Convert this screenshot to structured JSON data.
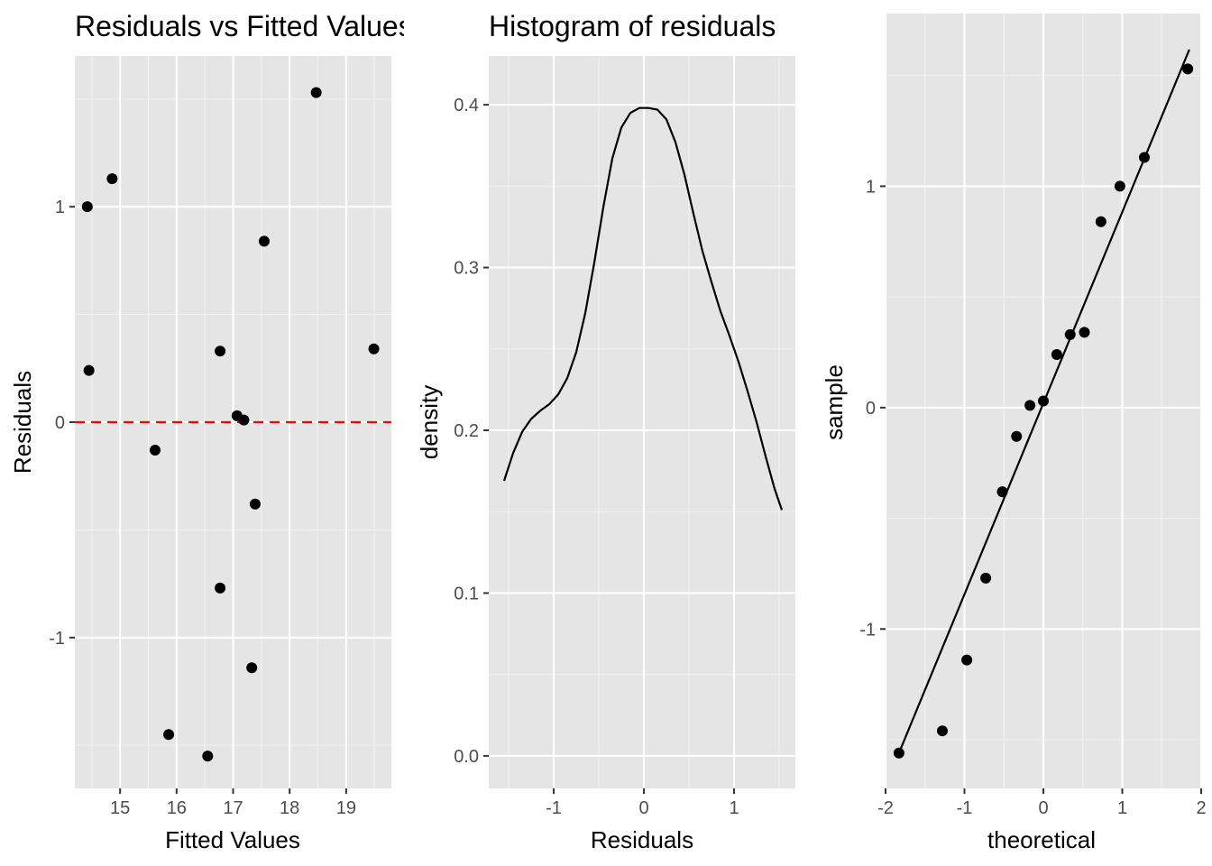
{
  "chart_data": [
    {
      "type": "scatter",
      "title": "Residuals vs Fitted Values",
      "xlabel": "Fitted Values",
      "ylabel": "Residuals",
      "xlim": [
        14.2,
        19.8
      ],
      "ylim": [
        -1.7,
        1.7
      ],
      "x_ticks": [
        15,
        16,
        17,
        18,
        19
      ],
      "y_ticks": [
        -1,
        0,
        1
      ],
      "grid": true,
      "reference_line": {
        "y": 0,
        "color": "#ff0000",
        "style": "dashed"
      },
      "points": [
        {
          "x": 14.42,
          "y": 1.0
        },
        {
          "x": 14.45,
          "y": 0.24
        },
        {
          "x": 14.86,
          "y": 1.13
        },
        {
          "x": 15.62,
          "y": -0.13
        },
        {
          "x": 15.86,
          "y": -1.45
        },
        {
          "x": 16.55,
          "y": -1.55
        },
        {
          "x": 16.77,
          "y": 0.33
        },
        {
          "x": 16.77,
          "y": -0.77
        },
        {
          "x": 17.07,
          "y": 0.03
        },
        {
          "x": 17.19,
          "y": 0.01
        },
        {
          "x": 17.33,
          "y": -1.14
        },
        {
          "x": 17.39,
          "y": -0.38
        },
        {
          "x": 17.55,
          "y": 0.84
        },
        {
          "x": 18.47,
          "y": 1.53
        },
        {
          "x": 19.49,
          "y": 0.34
        }
      ]
    },
    {
      "type": "line",
      "title": "Histogram of residuals",
      "xlabel": "Residuals",
      "ylabel": "density",
      "xlim": [
        -1.72,
        1.68
      ],
      "ylim": [
        -0.02,
        0.43
      ],
      "x_ticks": [
        -1,
        0,
        1
      ],
      "y_ticks": [
        0.0,
        0.1,
        0.2,
        0.3,
        0.4
      ],
      "y_tick_labels": [
        "0.0",
        "0.1",
        "0.2",
        "0.3",
        "0.4"
      ],
      "grid": true,
      "series": [
        {
          "x": [
            -1.55,
            -1.45,
            -1.35,
            -1.25,
            -1.15,
            -1.05,
            -0.95,
            -0.85,
            -0.75,
            -0.65,
            -0.55,
            -0.45,
            -0.35,
            -0.25,
            -0.15,
            -0.05,
            0.05,
            0.15,
            0.25,
            0.35,
            0.45,
            0.55,
            0.65,
            0.75,
            0.85,
            0.95,
            1.05,
            1.15,
            1.25,
            1.35,
            1.45,
            1.53
          ],
          "y": [
            0.169,
            0.186,
            0.199,
            0.207,
            0.212,
            0.216,
            0.222,
            0.232,
            0.248,
            0.272,
            0.303,
            0.337,
            0.367,
            0.386,
            0.395,
            0.398,
            0.398,
            0.397,
            0.391,
            0.377,
            0.357,
            0.333,
            0.31,
            0.291,
            0.273,
            0.258,
            0.242,
            0.224,
            0.205,
            0.184,
            0.164,
            0.151
          ]
        }
      ]
    },
    {
      "type": "scatter",
      "xlabel": "theoretical",
      "ylabel": "sample",
      "xlim": [
        -2.0,
        2.0
      ],
      "ylim": [
        -1.72,
        1.78
      ],
      "x_ticks": [
        -2,
        -1,
        0,
        1,
        2
      ],
      "y_ticks": [
        -1,
        0,
        1
      ],
      "grid": true,
      "reference_line": {
        "x": [
          -1.83,
          1.83
        ],
        "y": [
          -1.56,
          1.6
        ]
      },
      "points": [
        {
          "x": -1.83,
          "y": -1.56
        },
        {
          "x": -1.28,
          "y": -1.46
        },
        {
          "x": -0.97,
          "y": -1.14
        },
        {
          "x": -0.73,
          "y": -0.77
        },
        {
          "x": -0.52,
          "y": -0.38
        },
        {
          "x": -0.34,
          "y": -0.13
        },
        {
          "x": -0.17,
          "y": 0.01
        },
        {
          "x": 0.0,
          "y": 0.03
        },
        {
          "x": 0.17,
          "y": 0.24
        },
        {
          "x": 0.34,
          "y": 0.33
        },
        {
          "x": 0.52,
          "y": 0.34
        },
        {
          "x": 0.73,
          "y": 0.84
        },
        {
          "x": 0.97,
          "y": 1.0
        },
        {
          "x": 1.28,
          "y": 1.13
        },
        {
          "x": 1.83,
          "y": 1.53
        }
      ]
    }
  ]
}
